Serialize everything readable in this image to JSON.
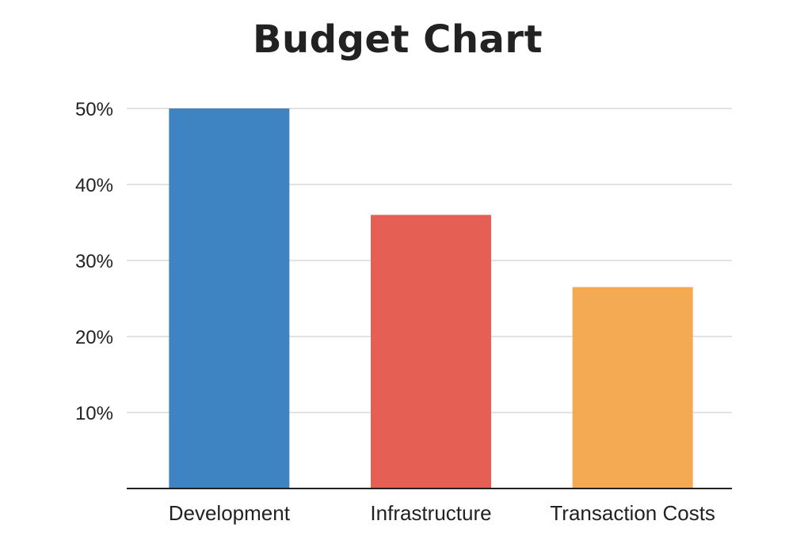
{
  "chart_data": {
    "type": "bar",
    "title": "Budget Chart",
    "xlabel": "",
    "ylabel": "",
    "categories": [
      "Development",
      "Infrastructure",
      "Transaction Costs"
    ],
    "values": [
      50,
      36,
      26.5
    ],
    "colors": [
      "#3F84C2",
      "#E65F55",
      "#F3AA52"
    ],
    "ylim": [
      0,
      50
    ],
    "yticks": [
      10,
      20,
      30,
      40,
      50
    ],
    "ytick_labels": [
      "10%",
      "20%",
      "30%",
      "40%",
      "50%"
    ],
    "grid": true,
    "legend": "none"
  }
}
